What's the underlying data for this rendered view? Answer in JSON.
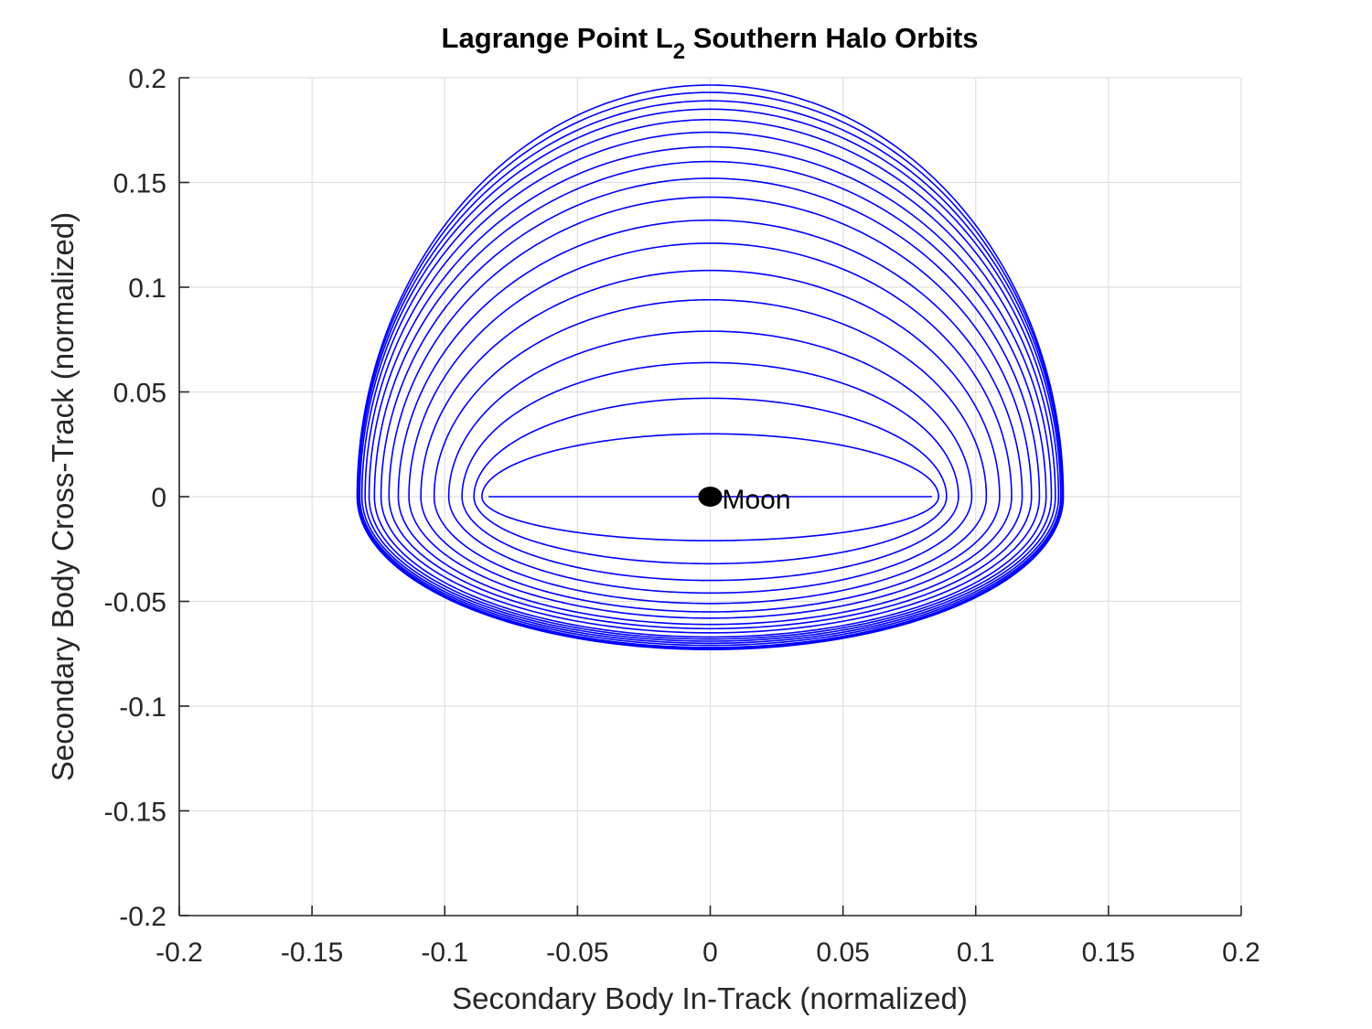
{
  "chart_data": {
    "type": "line",
    "title": {
      "prefix": "Lagrange Point L",
      "subscript": "2",
      "suffix": " Southern Halo Orbits"
    },
    "xlabel": "Secondary Body In-Track (normalized)",
    "ylabel": "Secondary Body Cross-Track (normalized)",
    "xlim": [
      -0.2,
      0.2
    ],
    "ylim": [
      -0.2,
      0.2
    ],
    "x_ticks": [
      -0.2,
      -0.15,
      -0.1,
      -0.05,
      0,
      0.05,
      0.1,
      0.15,
      0.2
    ],
    "x_tick_labels": [
      "-0.2",
      "-0.15",
      "-0.1",
      "-0.05",
      "0",
      "0.05",
      "0.1",
      "0.15",
      "0.2"
    ],
    "y_ticks": [
      0.2,
      0.15,
      0.1,
      0.05,
      0,
      -0.05,
      -0.1,
      -0.15,
      -0.2
    ],
    "y_tick_labels": [
      "0.2",
      "0.15",
      "0.1",
      "0.05",
      "0",
      "-0.05",
      "-0.1",
      "-0.15",
      "-0.2"
    ],
    "grid": true,
    "line_color": "#0000ff",
    "orbit_family": [
      {
        "x_half_width": 0.0835,
        "y_top": 0.0,
        "y_bottom": 0.0
      },
      {
        "x_half_width": 0.086,
        "y_top": 0.03,
        "y_bottom": -0.021
      },
      {
        "x_half_width": 0.089,
        "y_top": 0.047,
        "y_bottom": -0.032
      },
      {
        "x_half_width": 0.0935,
        "y_top": 0.064,
        "y_bottom": -0.04
      },
      {
        "x_half_width": 0.0985,
        "y_top": 0.079,
        "y_bottom": -0.046
      },
      {
        "x_half_width": 0.104,
        "y_top": 0.094,
        "y_bottom": -0.051
      },
      {
        "x_half_width": 0.109,
        "y_top": 0.108,
        "y_bottom": -0.055
      },
      {
        "x_half_width": 0.1135,
        "y_top": 0.121,
        "y_bottom": -0.058
      },
      {
        "x_half_width": 0.1175,
        "y_top": 0.132,
        "y_bottom": -0.061
      },
      {
        "x_half_width": 0.121,
        "y_top": 0.143,
        "y_bottom": -0.063
      },
      {
        "x_half_width": 0.124,
        "y_top": 0.152,
        "y_bottom": -0.065
      },
      {
        "x_half_width": 0.1265,
        "y_top": 0.16,
        "y_bottom": -0.067
      },
      {
        "x_half_width": 0.1285,
        "y_top": 0.167,
        "y_bottom": -0.068
      },
      {
        "x_half_width": 0.13,
        "y_top": 0.174,
        "y_bottom": -0.069
      },
      {
        "x_half_width": 0.1312,
        "y_top": 0.18,
        "y_bottom": -0.07
      },
      {
        "x_half_width": 0.132,
        "y_top": 0.185,
        "y_bottom": -0.071
      },
      {
        "x_half_width": 0.1325,
        "y_top": 0.189,
        "y_bottom": -0.072
      },
      {
        "x_half_width": 0.1328,
        "y_top": 0.193,
        "y_bottom": -0.0725
      },
      {
        "x_half_width": 0.133,
        "y_top": 0.1965,
        "y_bottom": -0.073
      }
    ],
    "annotations": [
      {
        "text": "Moon",
        "x": 0.0,
        "y": 0.0,
        "marker": "filled-circle",
        "marker_color": "#000000"
      }
    ]
  }
}
